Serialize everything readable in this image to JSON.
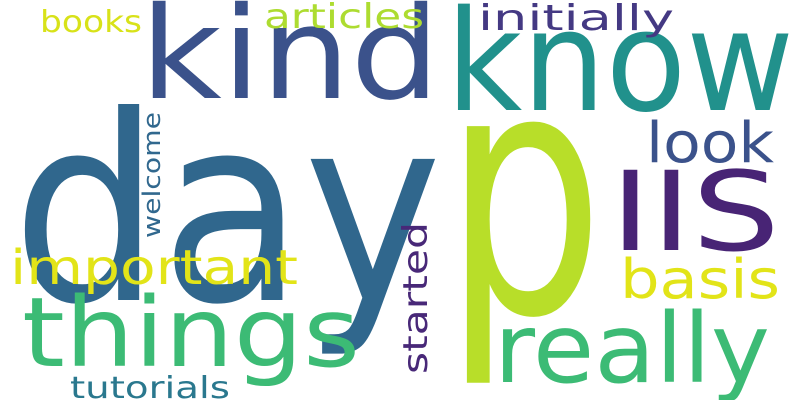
{
  "words": [
    {
      "text": "day",
      "color": "#30678d",
      "vertical": false
    },
    {
      "text": "p",
      "color": "#b8de29",
      "vertical": false
    },
    {
      "text": "know",
      "color": "#21918c",
      "vertical": false
    },
    {
      "text": "kind",
      "color": "#3b528b",
      "vertical": false
    },
    {
      "text": "things",
      "color": "#3cbb75",
      "vertical": false
    },
    {
      "text": "really",
      "color": "#3cbb75",
      "vertical": false
    },
    {
      "text": "IIS",
      "color": "#482475",
      "vertical": false
    },
    {
      "text": "important",
      "color": "#e2e418",
      "vertical": false
    },
    {
      "text": "look",
      "color": "#3b528b",
      "vertical": false
    },
    {
      "text": "basis",
      "color": "#e2e418",
      "vertical": false
    },
    {
      "text": "initially",
      "color": "#443983",
      "vertical": false
    },
    {
      "text": "articles",
      "color": "#addc30",
      "vertical": false
    },
    {
      "text": "books",
      "color": "#d8e219",
      "vertical": false
    },
    {
      "text": "started",
      "color": "#482878",
      "vertical": true
    },
    {
      "text": "welcome",
      "color": "#31688e",
      "vertical": true
    },
    {
      "text": "tutorials",
      "color": "#2a788e",
      "vertical": false
    }
  ]
}
